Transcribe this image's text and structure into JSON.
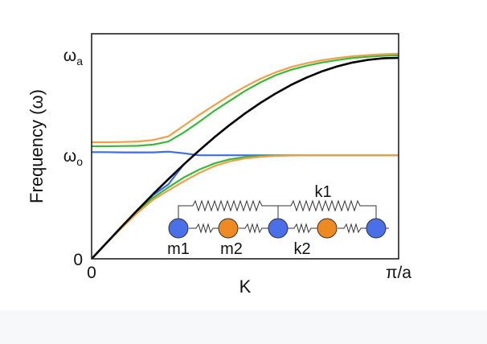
{
  "chart_data": {
    "type": "line",
    "title": "",
    "xlabel": "K",
    "ylabel": "Frequency (ω)",
    "xlim": [
      0,
      1
    ],
    "ylim": [
      0,
      1
    ],
    "x_ticks": [
      {
        "value": 0,
        "label": "0"
      },
      {
        "value": 1,
        "label": "π/a"
      }
    ],
    "y_ticks": [
      {
        "value": 0,
        "label": "0"
      },
      {
        "value": 0.47,
        "label": "ωo",
        "base": "ω",
        "sub": "o"
      },
      {
        "value": 0.93,
        "label": "ωa",
        "base": "ω",
        "sub": "a"
      }
    ],
    "x": [
      0,
      0.05,
      0.1,
      0.15,
      0.2,
      0.25,
      0.3,
      0.35,
      0.4,
      0.45,
      0.5,
      0.55,
      0.6,
      0.65,
      0.7,
      0.75,
      0.8,
      0.85,
      0.9,
      0.95,
      1.0
    ],
    "series": [
      {
        "color": "#000000",
        "values": [
          0,
          0.073,
          0.146,
          0.217,
          0.287,
          0.354,
          0.419,
          0.481,
          0.54,
          0.595,
          0.646,
          0.693,
          0.735,
          0.773,
          0.805,
          0.833,
          0.855,
          0.872,
          0.884,
          0.891,
          0.893
        ]
      },
      {
        "color": "#3a6cf0",
        "values": [
          0.474,
          0.474,
          0.473,
          0.473,
          0.473,
          0.476,
          0.469,
          0.46,
          0.46,
          0.46,
          0.46,
          0.46,
          0.46,
          0.46,
          0.46,
          0.46,
          0.46,
          0.46,
          0.46,
          0.46,
          0.46
        ]
      },
      {
        "color": "#3a6cf0",
        "values": [
          0,
          0.073,
          0.146,
          0.217,
          0.283,
          0.331,
          0.419,
          0.481,
          0.54,
          0.595,
          0.646,
          0.693,
          0.735,
          0.773,
          0.805,
          0.833,
          0.855,
          0.872,
          0.884,
          0.891,
          0.893
        ]
      },
      {
        "color": "#3ab83a",
        "values": [
          0.5,
          0.5,
          0.501,
          0.502,
          0.507,
          0.521,
          0.561,
          0.608,
          0.658,
          0.702,
          0.746,
          0.784,
          0.816,
          0.84,
          0.858,
          0.872,
          0.883,
          0.892,
          0.898,
          0.902,
          0.904
        ]
      },
      {
        "color": "#3ab83a",
        "values": [
          0,
          0.072,
          0.143,
          0.211,
          0.271,
          0.317,
          0.361,
          0.396,
          0.424,
          0.442,
          0.452,
          0.457,
          0.459,
          0.46,
          0.46,
          0.46,
          0.46,
          0.46,
          0.46,
          0.46,
          0.46
        ]
      },
      {
        "color": "#ef9f4a",
        "values": [
          0.518,
          0.518,
          0.519,
          0.521,
          0.528,
          0.544,
          0.591,
          0.639,
          0.683,
          0.726,
          0.765,
          0.8,
          0.829,
          0.852,
          0.869,
          0.882,
          0.892,
          0.9,
          0.905,
          0.909,
          0.911
        ]
      },
      {
        "color": "#ef9f4a",
        "values": [
          0,
          0.071,
          0.14,
          0.205,
          0.262,
          0.304,
          0.344,
          0.381,
          0.412,
          0.433,
          0.446,
          0.453,
          0.457,
          0.459,
          0.46,
          0.46,
          0.46,
          0.46,
          0.46,
          0.46,
          0.46
        ]
      }
    ]
  },
  "inset": {
    "spring_labels": {
      "k1": "k1",
      "k2": "k2"
    },
    "masses": [
      {
        "color": "#4a6fe8"
      },
      {
        "color": "#ee8a22"
      },
      {
        "color": "#4a6fe8"
      },
      {
        "color": "#ee8a22"
      },
      {
        "color": "#4a6fe8"
      }
    ],
    "mass_labels": {
      "m1": "m1",
      "m2": "m2"
    }
  }
}
